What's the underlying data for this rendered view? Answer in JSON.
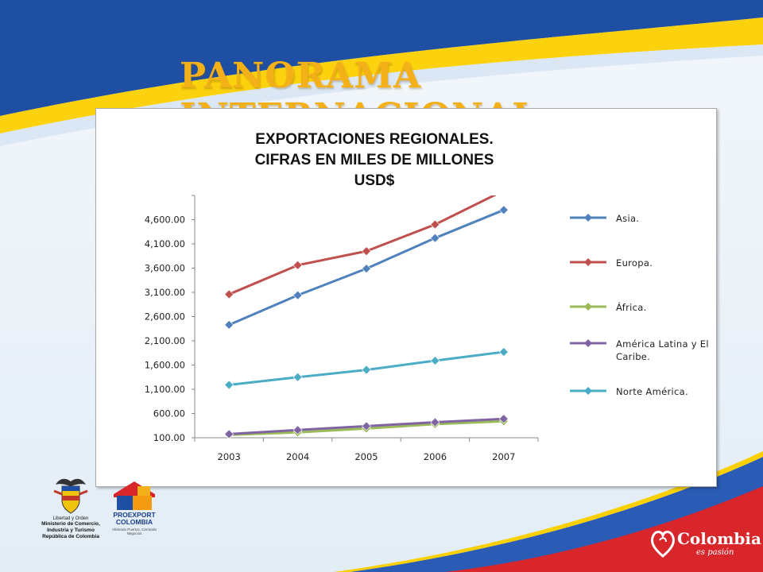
{
  "slide": {
    "title": "PANORAMA INTERNACIONAL",
    "logos": {
      "ministry_slogan": "Libertad y Orden",
      "ministry_name": [
        "Ministerio de Comercio,",
        "Industria y Turismo",
        "República de Colombia"
      ],
      "proexport_name": [
        "PROEXPORT",
        "COLOMBIA"
      ],
      "proexport_tagline": "Abriendo Puertos, Cerrando Negocios",
      "colombia_brand": "Colombia",
      "colombia_tagline": "es pasión"
    }
  },
  "chart_data": {
    "type": "line",
    "title": [
      "EXPORTACIONES REGIONALES.",
      "CIFRAS EN MILES DE MILLONES",
      "USD$"
    ],
    "xlabel": "",
    "ylabel": "",
    "categories": [
      "2003",
      "2004",
      "2005",
      "2006",
      "2007"
    ],
    "ylim": [
      100,
      5100
    ],
    "yticks": [
      100,
      600,
      1100,
      1600,
      2100,
      2600,
      3100,
      3600,
      4100,
      4600
    ],
    "ytick_labels": [
      "100.00",
      "600.00",
      "1,100.00",
      "1,600.00",
      "2,100.00",
      "2,600.00",
      "3,100.00",
      "3,600.00",
      "4,100.00",
      "4,600.00"
    ],
    "grid": false,
    "legend_position": "right",
    "series": [
      {
        "name": "Asia.",
        "color": "#4f81bd",
        "values": [
          2430,
          3040,
          3590,
          4220,
          4800
        ]
      },
      {
        "name": "Europa.",
        "color": "#c0504d",
        "values": [
          3060,
          3660,
          3950,
          4500,
          5200
        ]
      },
      {
        "name": "África.",
        "color": "#9bbb59",
        "values": [
          160,
          210,
          290,
          380,
          440
        ]
      },
      {
        "name": "América Latina y El Caribe.",
        "color": "#8064a2",
        "values": [
          175,
          260,
          340,
          420,
          490
        ]
      },
      {
        "name": "Norte América.",
        "color": "#4bacc6",
        "values": [
          1190,
          1350,
          1500,
          1690,
          1870
        ]
      }
    ]
  }
}
